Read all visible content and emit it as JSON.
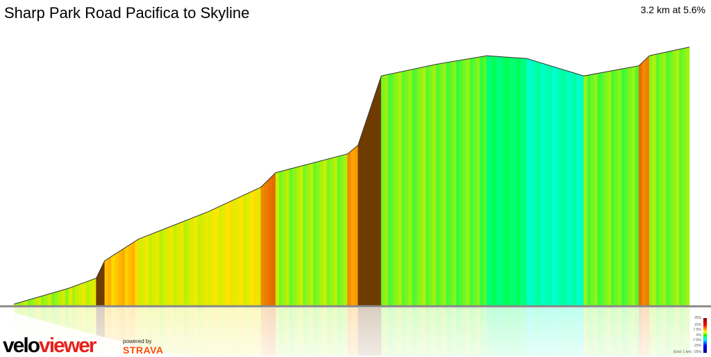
{
  "header": {
    "title": "Sharp Park Road Pacifica to Skyline",
    "summary": "3.2 km at 5.6%"
  },
  "branding": {
    "logo_part1": "velo",
    "logo_part2": "viewer",
    "powered_by": "powered by",
    "strava": "STRAVA"
  },
  "legend": {
    "labels": [
      "25%",
      "15%",
      "7.5%",
      "0%",
      "-7.5%",
      "-15%",
      "-25%"
    ],
    "grid_note": "(Grid: 1 km)",
    "colors": [
      "#800000",
      "#ff2000",
      "#ffa500",
      "#ffff00",
      "#00ff00",
      "#00ffff",
      "#0000ff",
      "#000080"
    ]
  },
  "chart_data": {
    "type": "area",
    "title": "Sharp Park Road Pacifica to Skyline",
    "xlabel": "",
    "ylabel": "",
    "x_unit": "km",
    "y_unit": "m (relative elevation, estimated)",
    "xlim": [
      0,
      3.2
    ],
    "color_by": "gradient",
    "x": [
      0,
      0.26,
      0.39,
      0.43,
      0.59,
      0.92,
      1.17,
      1.24,
      1.58,
      1.63,
      1.74,
      2.0,
      2.24,
      2.43,
      2.7,
      2.96,
      3.01,
      3.2
    ],
    "y": [
      1,
      12,
      19,
      31,
      46,
      65,
      82,
      92,
      105,
      111,
      159,
      167,
      173,
      171,
      159,
      166,
      173,
      179
    ]
  }
}
